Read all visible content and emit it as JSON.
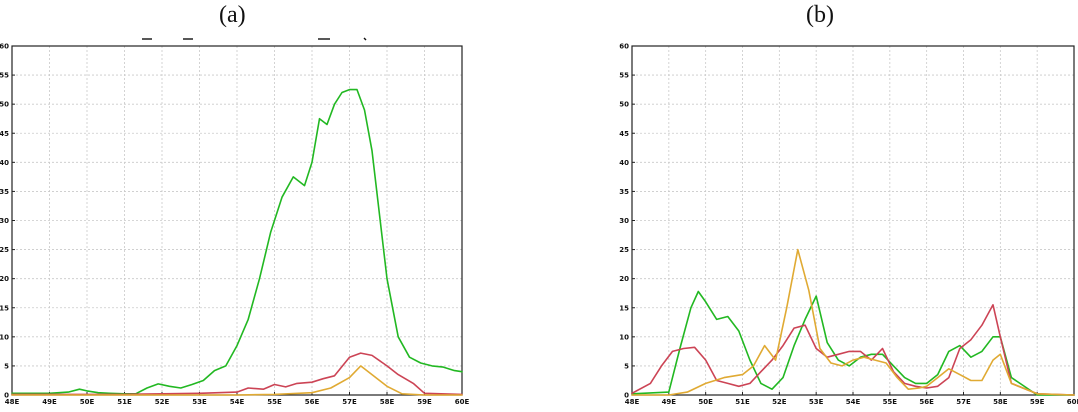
{
  "panels": {
    "a": {
      "label": "(a)"
    },
    "b": {
      "label": "(b)"
    }
  },
  "chart_data": [
    {
      "type": "line",
      "title": "",
      "xlabel": "",
      "ylabel": "",
      "xlim": [
        48,
        60
      ],
      "ylim": [
        0,
        60
      ],
      "grid": true,
      "x_ticks": [
        48,
        49,
        50,
        51,
        52,
        53,
        54,
        55,
        56,
        57,
        58,
        59,
        60
      ],
      "x_tick_labels": [
        "48E",
        "49E",
        "50E",
        "51E",
        "52E",
        "53E",
        "54E",
        "55E",
        "56E",
        "57E",
        "58E",
        "59E",
        "60E"
      ],
      "y_ticks": [
        0,
        5,
        10,
        15,
        20,
        25,
        30,
        35,
        40,
        45,
        50,
        55,
        60
      ],
      "y_tick_labels": [
        "0",
        "5",
        "10",
        "15",
        "20",
        "25",
        "30",
        "35",
        "40",
        "45",
        "50",
        "55",
        "60"
      ],
      "series": [
        {
          "color": "#22b822",
          "x": [
            48,
            49,
            49.5,
            49.8,
            50,
            50.3,
            50.6,
            51,
            51.3,
            51.6,
            51.9,
            52.2,
            52.5,
            52.8,
            53.1,
            53.4,
            53.7,
            54,
            54.3,
            54.6,
            54.9,
            55.2,
            55.5,
            55.8,
            56,
            56.2,
            56.4,
            56.6,
            56.8,
            57,
            57.2,
            57.4,
            57.6,
            57.8,
            58,
            58.3,
            58.6,
            58.9,
            59.2,
            59.5,
            59.8,
            60
          ],
          "y": [
            0.3,
            0.3,
            0.5,
            1.0,
            0.7,
            0.4,
            0.3,
            0.2,
            0.2,
            1.2,
            1.9,
            1.5,
            1.2,
            1.8,
            2.5,
            4.2,
            5.0,
            8.5,
            13.0,
            20.0,
            28.0,
            34.0,
            37.5,
            36.0,
            40.0,
            47.5,
            46.5,
            50.0,
            52.0,
            52.5,
            52.5,
            49.0,
            42.0,
            31.0,
            20.0,
            10.0,
            6.5,
            5.5,
            5.0,
            4.8,
            4.2,
            4.0
          ]
        },
        {
          "color": "#cc4455",
          "x": [
            48,
            51,
            52,
            53,
            54,
            54.3,
            54.7,
            55,
            55.3,
            55.6,
            56,
            56.3,
            56.6,
            57,
            57.3,
            57.6,
            58,
            58.3,
            58.7,
            59,
            60
          ],
          "y": [
            0.1,
            0.1,
            0.2,
            0.3,
            0.5,
            1.2,
            1.0,
            1.8,
            1.4,
            2.0,
            2.2,
            2.8,
            3.3,
            6.5,
            7.2,
            6.8,
            5.0,
            3.5,
            2.0,
            0.3,
            0.1
          ]
        },
        {
          "color": "#e0aa33",
          "x": [
            48,
            54,
            55,
            56,
            56.5,
            57,
            57.3,
            57.6,
            58,
            58.4,
            59,
            60
          ],
          "y": [
            0.0,
            0.0,
            0.1,
            0.4,
            1.2,
            3.0,
            5.0,
            3.5,
            1.5,
            0.2,
            0.0,
            0.0
          ]
        }
      ]
    },
    {
      "type": "line",
      "title": "",
      "xlabel": "",
      "ylabel": "",
      "xlim": [
        48,
        60
      ],
      "ylim": [
        0,
        60
      ],
      "grid": true,
      "x_ticks": [
        48,
        49,
        50,
        51,
        52,
        53,
        54,
        55,
        56,
        57,
        58,
        59,
        60
      ],
      "x_tick_labels": [
        "48E",
        "49E",
        "50E",
        "51E",
        "52E",
        "53E",
        "54E",
        "55E",
        "56E",
        "57E",
        "58E",
        "59E",
        "60E"
      ],
      "y_ticks": [
        0,
        5,
        10,
        15,
        20,
        25,
        30,
        35,
        40,
        45,
        50,
        55,
        60
      ],
      "y_tick_labels": [
        "0",
        "5",
        "10",
        "15",
        "20",
        "25",
        "30",
        "35",
        "40",
        "45",
        "50",
        "55",
        "60"
      ],
      "series": [
        {
          "color": "#22b822",
          "x": [
            48,
            49,
            49.3,
            49.6,
            49.8,
            50,
            50.3,
            50.6,
            50.9,
            51.2,
            51.5,
            51.8,
            52.1,
            52.4,
            52.7,
            53,
            53.3,
            53.6,
            53.9,
            54.2,
            54.5,
            54.8,
            55.1,
            55.4,
            55.7,
            56,
            56.3,
            56.6,
            56.9,
            57.2,
            57.5,
            57.8,
            58,
            58.3,
            59,
            60
          ],
          "y": [
            0.2,
            0.5,
            8.0,
            15.0,
            17.8,
            16.0,
            13.0,
            13.5,
            11.0,
            6.0,
            2.0,
            1.0,
            3.0,
            8.5,
            13.0,
            17.0,
            9.0,
            6.0,
            5.0,
            6.5,
            7.0,
            7.0,
            5.0,
            3.0,
            2.0,
            2.0,
            3.5,
            7.5,
            8.5,
            6.5,
            7.5,
            10.0,
            10.0,
            3.0,
            0.0,
            0.0
          ]
        },
        {
          "color": "#cc4455",
          "x": [
            48,
            48.5,
            48.8,
            49.1,
            49.4,
            49.7,
            50,
            50.3,
            50.6,
            50.9,
            51.2,
            51.5,
            51.8,
            52.1,
            52.4,
            52.7,
            53,
            53.3,
            53.6,
            53.9,
            54.2,
            54.5,
            54.8,
            55.1,
            55.4,
            55.7,
            56,
            56.3,
            56.6,
            56.9,
            57.2,
            57.5,
            57.8,
            58,
            58.3,
            59,
            60
          ],
          "y": [
            0.3,
            2.0,
            5.0,
            7.5,
            8.0,
            8.2,
            6.0,
            2.5,
            2.0,
            1.5,
            2.0,
            4.0,
            6.0,
            8.5,
            11.5,
            12.0,
            8.0,
            6.5,
            7.0,
            7.5,
            7.5,
            6.0,
            8.0,
            4.0,
            2.0,
            1.5,
            1.2,
            1.5,
            3.0,
            8.0,
            9.5,
            12.0,
            15.5,
            10.0,
            2.0,
            0.2,
            0.0
          ]
        },
        {
          "color": "#e0aa33",
          "x": [
            48,
            49,
            49.5,
            50,
            50.5,
            51,
            51.3,
            51.6,
            51.9,
            52.2,
            52.5,
            52.8,
            53.1,
            53.4,
            53.7,
            54,
            54.3,
            54.6,
            54.9,
            55.2,
            55.5,
            55.8,
            56,
            56.3,
            56.6,
            56.9,
            57.2,
            57.5,
            57.8,
            58,
            58.3,
            59,
            60
          ],
          "y": [
            0.0,
            0.0,
            0.5,
            2.0,
            3.0,
            3.5,
            5.0,
            8.5,
            6.0,
            15.0,
            25.0,
            18.0,
            8.0,
            5.5,
            5.0,
            6.0,
            6.5,
            6.0,
            5.5,
            3.0,
            1.0,
            1.2,
            1.5,
            3.0,
            4.5,
            3.5,
            2.5,
            2.5,
            6.0,
            7.0,
            2.0,
            0.2,
            0.0
          ]
        }
      ]
    }
  ]
}
